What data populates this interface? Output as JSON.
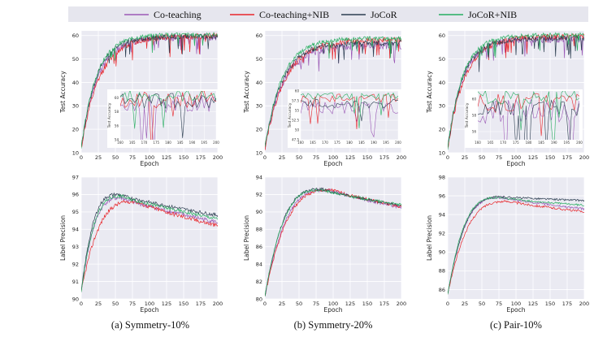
{
  "legend": {
    "entries": [
      {
        "label": "Co-teaching",
        "color": "#9b59b6"
      },
      {
        "label": "Co-teaching+NIB",
        "color": "#e8262b"
      },
      {
        "label": "JoCoR",
        "color": "#2c3e50"
      },
      {
        "label": "JoCoR+NIB",
        "color": "#27ae60"
      }
    ]
  },
  "captions": [
    "(a) Symmetry-10%",
    "(b) Symmetry-20%",
    "(c) Pair-10%"
  ],
  "chart_data": [
    {
      "type": "line",
      "title": "",
      "xlabel": "Epoch",
      "ylabel": "Test Accuracy",
      "xlim": [
        0,
        200
      ],
      "ylim": [
        10,
        62
      ],
      "xticks": [
        0,
        25,
        50,
        75,
        100,
        125,
        150,
        175,
        200
      ],
      "yticks": [
        10,
        20,
        30,
        40,
        50,
        60
      ],
      "series": [
        {
          "name": "Co-teaching",
          "start": 12,
          "end": 59.3,
          "rate": 0.042,
          "noise": 1.4,
          "seed": 11
        },
        {
          "name": "Co-teaching+NIB",
          "start": 12,
          "end": 59.8,
          "rate": 0.037,
          "noise": 1.3,
          "seed": 12
        },
        {
          "name": "JoCoR",
          "start": 12,
          "end": 59.6,
          "rate": 0.045,
          "noise": 1.1,
          "seed": 13
        },
        {
          "name": "JoCoR+NIB",
          "start": 12,
          "end": 60.4,
          "rate": 0.045,
          "noise": 0.9,
          "seed": 14
        }
      ],
      "inset": {
        "ylabel": "Test Accuracy",
        "xlim": [
          160,
          200
        ],
        "xticks": [
          160,
          165,
          170,
          175,
          180,
          185,
          190,
          195,
          200
        ],
        "yticks": [
          54,
          56,
          58,
          60
        ],
        "ylim": [
          54,
          61
        ]
      }
    },
    {
      "type": "line",
      "title": "",
      "xlabel": "Epoch",
      "ylabel": "Test Accuracy",
      "xlim": [
        0,
        200
      ],
      "ylim": [
        10,
        62
      ],
      "xticks": [
        0,
        25,
        50,
        75,
        100,
        125,
        150,
        175,
        200
      ],
      "yticks": [
        10,
        20,
        30,
        40,
        50,
        60
      ],
      "series": [
        {
          "name": "Co-teaching",
          "start": 12,
          "end": 55.8,
          "rate": 0.038,
          "noise": 1.6,
          "seed": 21
        },
        {
          "name": "Co-teaching+NIB",
          "start": 12,
          "end": 58.2,
          "rate": 0.034,
          "noise": 1.2,
          "seed": 22
        },
        {
          "name": "JoCoR",
          "start": 12,
          "end": 56.8,
          "rate": 0.04,
          "noise": 1.2,
          "seed": 23
        },
        {
          "name": "JoCoR+NIB",
          "start": 12,
          "end": 58.8,
          "rate": 0.04,
          "noise": 0.9,
          "seed": 24
        }
      ],
      "inset": {
        "ylabel": "Test Accuracy",
        "xlim": [
          160,
          200
        ],
        "xticks": [
          160,
          165,
          170,
          175,
          180,
          185,
          190,
          195,
          200
        ],
        "yticks": [
          47.5,
          50.0,
          52.5,
          55.0,
          57.5,
          60.0
        ],
        "ylim": [
          47.5,
          60
        ]
      }
    },
    {
      "type": "line",
      "title": "",
      "xlabel": "Epoch",
      "ylabel": "Test Accuracy",
      "xlim": [
        0,
        200
      ],
      "ylim": [
        10,
        62
      ],
      "xticks": [
        0,
        25,
        50,
        75,
        100,
        125,
        150,
        175,
        200
      ],
      "yticks": [
        10,
        20,
        30,
        40,
        50,
        60
      ],
      "series": [
        {
          "name": "Co-teaching",
          "start": 12,
          "end": 58.5,
          "rate": 0.045,
          "noise": 1.5,
          "seed": 31
        },
        {
          "name": "Co-teaching+NIB",
          "start": 12,
          "end": 59.6,
          "rate": 0.04,
          "noise": 1.2,
          "seed": 32
        },
        {
          "name": "JoCoR",
          "start": 12,
          "end": 58.8,
          "rate": 0.046,
          "noise": 1.1,
          "seed": 33
        },
        {
          "name": "JoCoR+NIB",
          "start": 12,
          "end": 60.3,
          "rate": 0.046,
          "noise": 0.9,
          "seed": 34
        }
      ],
      "inset": {
        "ylabel": "Test Accuracy",
        "xlim": [
          160,
          200
        ],
        "xticks": [
          160,
          165,
          170,
          175,
          180,
          185,
          190,
          195,
          200
        ],
        "yticks": [
          56,
          58,
          60
        ],
        "ylim": [
          55,
          61
        ]
      }
    },
    {
      "type": "line",
      "title": "",
      "xlabel": "Epoch",
      "ylabel": "Label Precision",
      "xlim": [
        0,
        200
      ],
      "ylim": [
        90,
        97
      ],
      "xticks": [
        0,
        25,
        50,
        75,
        100,
        125,
        150,
        175,
        200
      ],
      "yticks": [
        90,
        91,
        92,
        93,
        94,
        95,
        96,
        97
      ],
      "series": [
        {
          "name": "Co-teaching",
          "start": 90.4,
          "peak": 95.8,
          "peakAt": 60,
          "end": 94.4,
          "noise": 0.12,
          "seed": 41
        },
        {
          "name": "Co-teaching+NIB",
          "start": 90.4,
          "peak": 95.6,
          "peakAt": 80,
          "end": 94.2,
          "noise": 0.12,
          "seed": 42
        },
        {
          "name": "JoCoR",
          "start": 90.4,
          "peak": 96.0,
          "peakAt": 55,
          "end": 94.8,
          "noise": 0.1,
          "seed": 43
        },
        {
          "name": "JoCoR+NIB",
          "start": 90.4,
          "peak": 95.9,
          "peakAt": 60,
          "end": 94.6,
          "noise": 0.1,
          "seed": 44
        }
      ]
    },
    {
      "type": "line",
      "title": "",
      "xlabel": "Epoch",
      "ylabel": "Label Precision",
      "xlim": [
        0,
        200
      ],
      "ylim": [
        80,
        94
      ],
      "xticks": [
        0,
        25,
        50,
        75,
        100,
        125,
        150,
        175,
        200
      ],
      "yticks": [
        80,
        82,
        84,
        86,
        88,
        90,
        92,
        94
      ],
      "series": [
        {
          "name": "Co-teaching",
          "start": 80.3,
          "peak": 92.5,
          "peakAt": 95,
          "end": 90.5,
          "noise": 0.18,
          "seed": 51
        },
        {
          "name": "Co-teaching+NIB",
          "start": 80.3,
          "peak": 92.5,
          "peakAt": 100,
          "end": 90.6,
          "noise": 0.18,
          "seed": 52
        },
        {
          "name": "JoCoR",
          "start": 80.3,
          "peak": 92.6,
          "peakAt": 85,
          "end": 90.7,
          "noise": 0.16,
          "seed": 53
        },
        {
          "name": "JoCoR+NIB",
          "start": 80.3,
          "peak": 92.5,
          "peakAt": 85,
          "end": 90.8,
          "noise": 0.16,
          "seed": 54
        }
      ]
    },
    {
      "type": "line",
      "title": "",
      "xlabel": "Epoch",
      "ylabel": "Label Precision",
      "xlim": [
        0,
        200
      ],
      "ylim": [
        85,
        98
      ],
      "xticks": [
        0,
        25,
        50,
        75,
        100,
        125,
        150,
        175,
        200
      ],
      "yticks": [
        86,
        88,
        90,
        92,
        94,
        96,
        98
      ],
      "series": [
        {
          "name": "Co-teaching",
          "start": 85.5,
          "peak": 95.8,
          "peakAt": 80,
          "end": 94.6,
          "noise": 0.12,
          "seed": 61
        },
        {
          "name": "Co-teaching+NIB",
          "start": 85.5,
          "peak": 95.4,
          "peakAt": 90,
          "end": 94.3,
          "noise": 0.12,
          "seed": 62
        },
        {
          "name": "JoCoR",
          "start": 85.5,
          "peak": 95.9,
          "peakAt": 80,
          "end": 95.5,
          "noise": 0.1,
          "seed": 63
        },
        {
          "name": "JoCoR+NIB",
          "start": 85.5,
          "peak": 95.8,
          "peakAt": 75,
          "end": 95.0,
          "noise": 0.1,
          "seed": 64
        }
      ]
    }
  ]
}
